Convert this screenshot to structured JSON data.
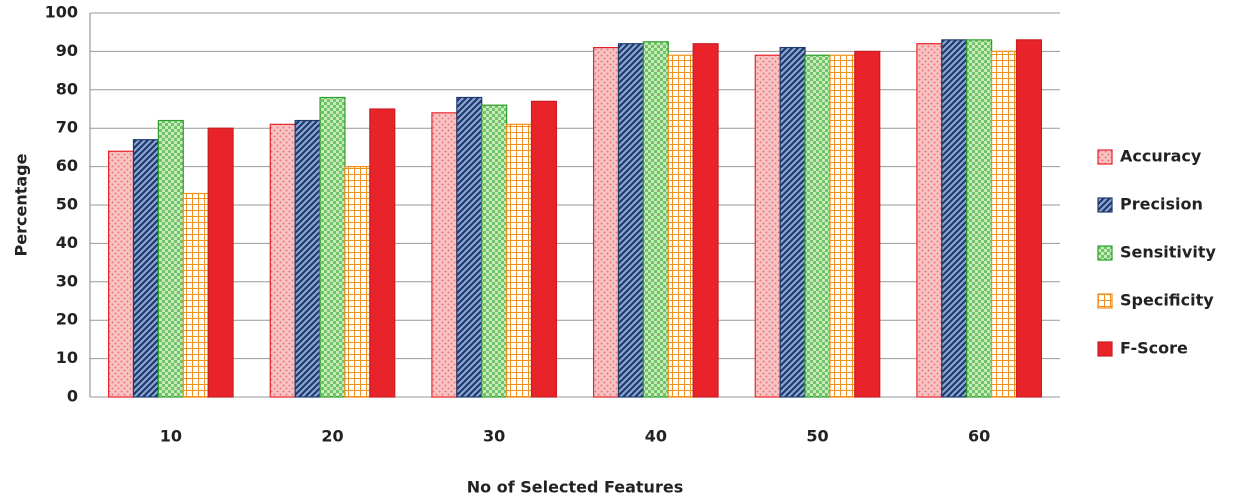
{
  "chart_data": {
    "type": "bar",
    "x_label": "No of Selected Features",
    "y_label": "Percentage",
    "categories": [
      "10",
      "20",
      "30",
      "40",
      "50",
      "60"
    ],
    "series": [
      {
        "name": "Accuracy",
        "color": "#e8232a",
        "fill": "#f7c4c4",
        "pattern": "dots",
        "values": [
          64,
          71,
          74,
          91,
          89,
          92
        ]
      },
      {
        "name": "Precision",
        "color": "#1f3b6e",
        "fill": "#8fa8d4",
        "pattern": "diagonal",
        "values": [
          67,
          72,
          78,
          92,
          91,
          93
        ]
      },
      {
        "name": "Sensitivity",
        "color": "#2ca02c",
        "fill": "#c8ecb8",
        "pattern": "checker",
        "values": [
          72,
          78,
          76,
          92.5,
          89,
          93
        ]
      },
      {
        "name": "Specificity",
        "color": "#f0901e",
        "fill": "#ffffff",
        "pattern": "grid",
        "values": [
          53,
          60,
          71,
          89,
          89,
          90
        ]
      },
      {
        "name": "F-Score",
        "color": "#c81e24",
        "fill": "#e8232a",
        "pattern": "solid",
        "values": [
          70,
          75,
          77,
          92,
          90,
          93
        ]
      }
    ],
    "ylim": [
      0,
      100
    ],
    "yticks": [
      0,
      10,
      20,
      30,
      40,
      50,
      60,
      70,
      80,
      90,
      100
    ],
    "grid": true,
    "legend": "right"
  }
}
